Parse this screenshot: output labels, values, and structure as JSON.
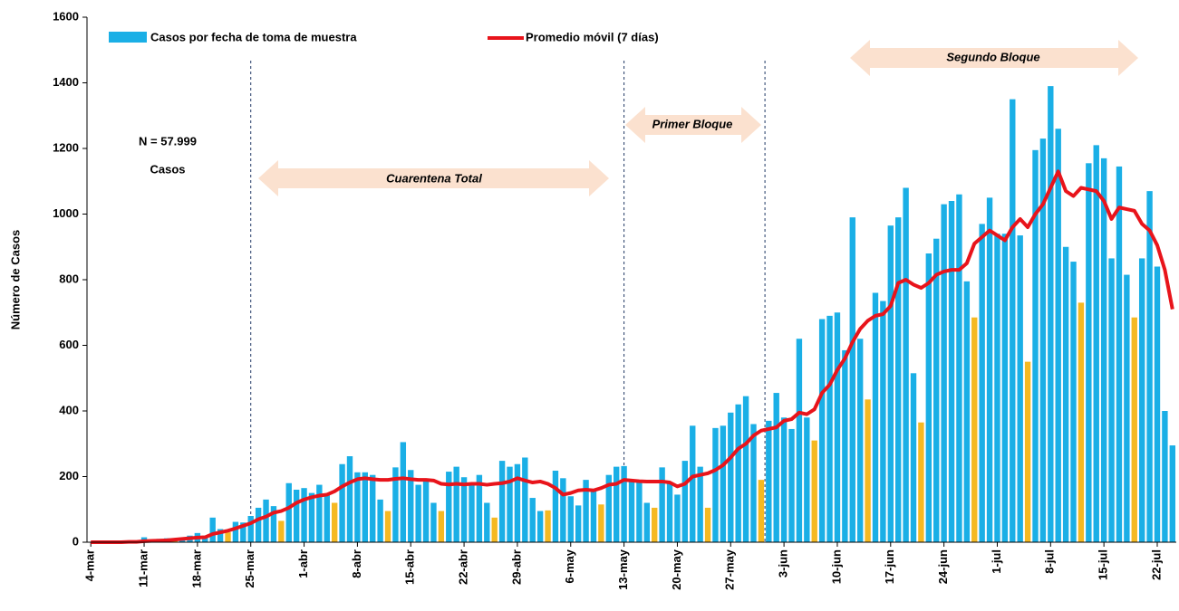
{
  "chart_data": {
    "type": "bar",
    "ylabel": "Número de Casos",
    "ylim": [
      0,
      1600
    ],
    "yticks": [
      0,
      200,
      400,
      600,
      800,
      1000,
      1200,
      1400,
      1600
    ],
    "legend": "top",
    "annotations": [
      "N = 57.999",
      "Casos",
      "Cuarentena Total",
      "Primer Bloque",
      "Segundo Bloque"
    ],
    "categories": [
      "4-mar",
      null,
      null,
      null,
      null,
      null,
      null,
      "11-mar",
      null,
      null,
      null,
      null,
      null,
      null,
      "18-mar",
      null,
      null,
      null,
      null,
      null,
      null,
      "25-mar",
      null,
      null,
      null,
      null,
      null,
      null,
      "1-abr",
      null,
      null,
      null,
      null,
      null,
      null,
      "8-abr",
      null,
      null,
      null,
      null,
      null,
      null,
      "15-abr",
      null,
      null,
      null,
      null,
      null,
      null,
      "22-abr",
      null,
      null,
      null,
      null,
      null,
      null,
      "29-abr",
      null,
      null,
      null,
      null,
      null,
      null,
      "6-may",
      null,
      null,
      null,
      null,
      null,
      null,
      "13-may",
      null,
      null,
      null,
      null,
      null,
      null,
      "20-may",
      null,
      null,
      null,
      null,
      null,
      null,
      "27-may",
      null,
      null,
      null,
      null,
      null,
      null,
      "3-jun",
      null,
      null,
      null,
      null,
      null,
      null,
      "10-jun",
      null,
      null,
      null,
      null,
      null,
      null,
      "17-jun",
      null,
      null,
      null,
      null,
      null,
      null,
      "24-jun",
      null,
      null,
      null,
      null,
      null,
      null,
      "1-jul",
      null,
      null,
      null,
      null,
      null,
      null,
      "8-jul",
      null,
      null,
      null,
      null,
      null,
      null,
      "15-jul",
      null,
      null,
      null,
      null,
      null,
      null,
      "22-jul",
      null,
      null
    ],
    "series": [
      {
        "name": "Casos por fecha de toma de muestra",
        "type": "bar",
        "color": "#1aafe6",
        "highlight_color": "#f5b922",
        "values": [
          0,
          0,
          1,
          1,
          0,
          2,
          3,
          15,
          8,
          10,
          12,
          5,
          14,
          20,
          28,
          20,
          75,
          40,
          30,
          62,
          60,
          80,
          105,
          130,
          110,
          65,
          180,
          160,
          165,
          150,
          175,
          145,
          120,
          238,
          262,
          213,
          213,
          205,
          130,
          95,
          228,
          305,
          220,
          175,
          185,
          120,
          95,
          215,
          230,
          198,
          175,
          205,
          120,
          75,
          248,
          230,
          238,
          258,
          135,
          95,
          97,
          218,
          195,
          140,
          112,
          190,
          160,
          115,
          205,
          230,
          232,
          190,
          185,
          120,
          105,
          228,
          180,
          145,
          248,
          355,
          230,
          105,
          348,
          355,
          395,
          420,
          445,
          360,
          190,
          370,
          455,
          380,
          345,
          620,
          380,
          310,
          680,
          690,
          700,
          585,
          990,
          620,
          435,
          760,
          735,
          965,
          990,
          1080,
          515,
          365,
          880,
          925,
          1030,
          1040,
          1060,
          795,
          685,
          970,
          1050,
          940,
          940,
          1350,
          935,
          550,
          1195,
          1230,
          1390,
          1260,
          900,
          855,
          730,
          1155,
          1210,
          1170,
          865,
          1145,
          815,
          685,
          865,
          1070,
          840,
          400,
          295
        ],
        "highlighted": [
          4,
          11,
          18,
          25,
          32,
          39,
          46,
          53,
          60,
          67,
          74,
          81,
          88,
          95,
          102,
          109,
          116,
          123,
          130,
          137
        ]
      },
      {
        "name": "Promedio móvil (7 días)",
        "type": "line",
        "color": "#e8141b",
        "values": [
          0,
          0,
          0,
          0,
          0,
          1,
          1,
          3,
          4,
          5,
          6,
          8,
          10,
          12,
          14,
          15,
          25,
          30,
          35,
          42,
          50,
          58,
          70,
          78,
          90,
          95,
          105,
          120,
          130,
          137,
          142,
          145,
          155,
          170,
          182,
          192,
          195,
          192,
          190,
          190,
          193,
          195,
          192,
          190,
          190,
          188,
          178,
          176,
          178,
          176,
          178,
          178,
          175,
          178,
          180,
          185,
          195,
          188,
          182,
          185,
          178,
          165,
          145,
          150,
          158,
          160,
          158,
          165,
          175,
          178,
          190,
          188,
          186,
          185,
          185,
          185,
          182,
          170,
          178,
          200,
          205,
          210,
          220,
          235,
          258,
          285,
          300,
          325,
          340,
          345,
          350,
          370,
          375,
          395,
          390,
          405,
          455,
          480,
          525,
          560,
          610,
          650,
          675,
          690,
          695,
          720,
          790,
          800,
          785,
          775,
          790,
          815,
          825,
          830,
          830,
          850,
          910,
          930,
          950,
          935,
          920,
          960,
          985,
          960,
          1000,
          1030,
          1080,
          1130,
          1070,
          1055,
          1080,
          1075,
          1070,
          1040,
          985,
          1020,
          1015,
          1010,
          970,
          950,
          905,
          830,
          710
        ]
      }
    ]
  }
}
